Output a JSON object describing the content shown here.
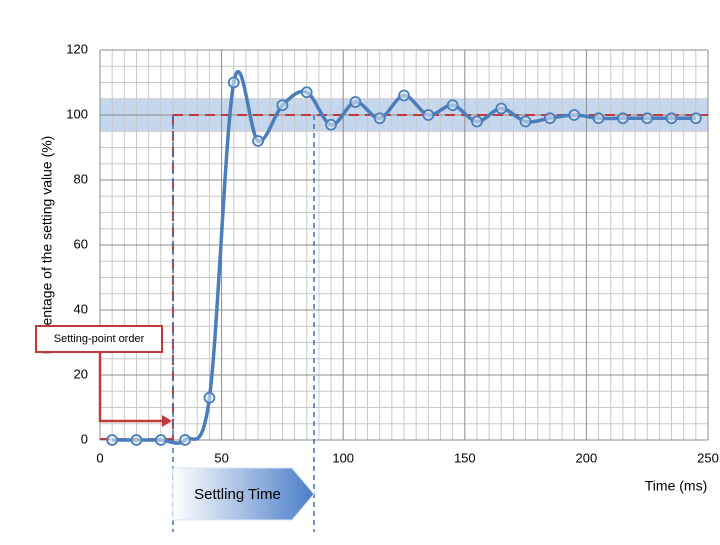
{
  "chart_data": {
    "type": "line",
    "ylabel": "Percentage of the setting value (%)",
    "xlabel": "Time (ms)",
    "x": [
      5,
      15,
      25,
      35,
      45,
      55,
      65,
      75,
      85,
      95,
      105,
      115,
      125,
      135,
      145,
      155,
      165,
      175,
      185,
      195,
      205,
      215,
      225,
      235,
      245
    ],
    "series": [
      {
        "color": "#4a7dbb",
        "values": [
          0,
          0,
          0,
          0,
          13,
          110,
          92,
          103,
          107,
          97,
          104,
          99,
          106,
          100,
          103,
          98,
          102,
          98,
          99,
          100,
          99,
          99,
          99,
          99,
          99
        ]
      }
    ],
    "xlim": [
      0,
      250
    ],
    "xticks": [
      0,
      50,
      100,
      150,
      200,
      250
    ],
    "ylim": [
      0,
      120
    ],
    "yticks": [
      0,
      20,
      40,
      60,
      80,
      100,
      120
    ],
    "grid": true,
    "band": [
      95,
      105
    ],
    "setpoint": 100,
    "step_time": 30,
    "settling_end": 88,
    "annotations": {
      "setpoint_order": "Setting-point order",
      "settling_time": "Settling Time"
    }
  }
}
